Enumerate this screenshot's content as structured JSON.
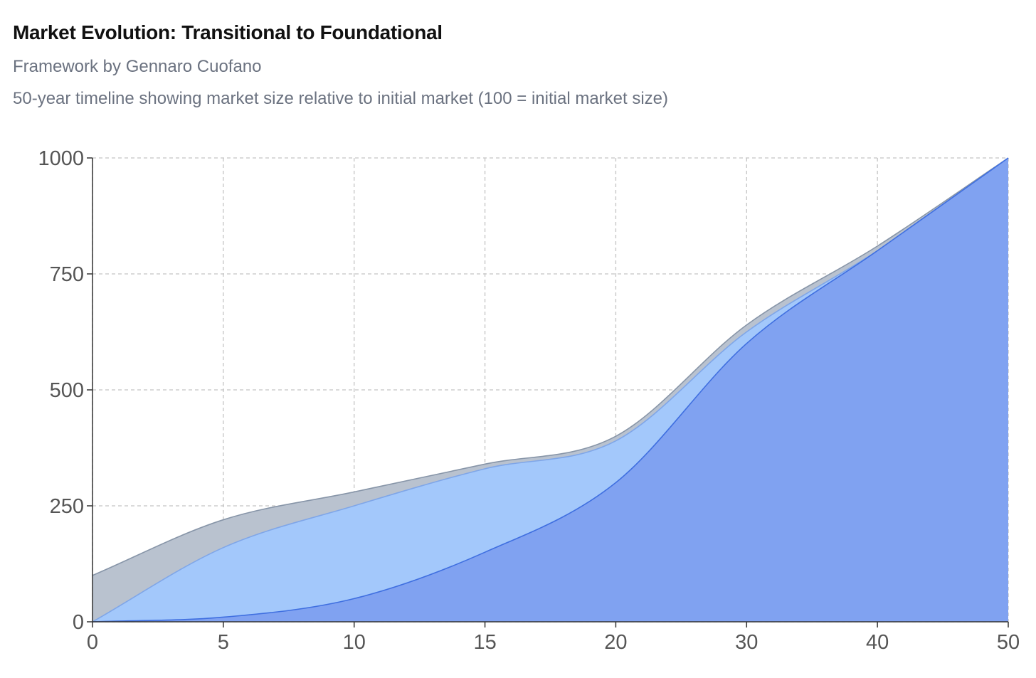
{
  "header": {
    "title": "Market Evolution: Transitional to Foundational",
    "subtitle": "Framework by Gennaro Cuofano",
    "description": "50-year timeline showing market size relative to initial market (100 = initial market size)"
  },
  "chart_data": {
    "type": "area",
    "title": "Market Evolution: Transitional to Foundational",
    "xlabel": "",
    "ylabel": "",
    "x": [
      0,
      5,
      10,
      15,
      20,
      30,
      40,
      50
    ],
    "x_tick_labels": [
      "0",
      "5",
      "10",
      "15",
      "20",
      "30",
      "40",
      "50"
    ],
    "y_ticks": [
      0,
      250,
      500,
      750,
      1000
    ],
    "ylim": [
      0,
      1000
    ],
    "grid": true,
    "legend": "none",
    "series": [
      {
        "values": [
          100,
          220,
          280,
          340,
          400,
          640,
          810,
          1000
        ],
        "fill": "#b9c2cf",
        "stroke": "#8795a8"
      },
      {
        "values": [
          0,
          160,
          250,
          330,
          390,
          625,
          800,
          1000
        ],
        "fill": "#a3c8fb",
        "stroke": "#7fa6e8"
      },
      {
        "values": [
          0,
          10,
          50,
          150,
          300,
          600,
          800,
          1000
        ],
        "fill": "#7ea0f0",
        "stroke": "#3f6fe0"
      }
    ]
  }
}
